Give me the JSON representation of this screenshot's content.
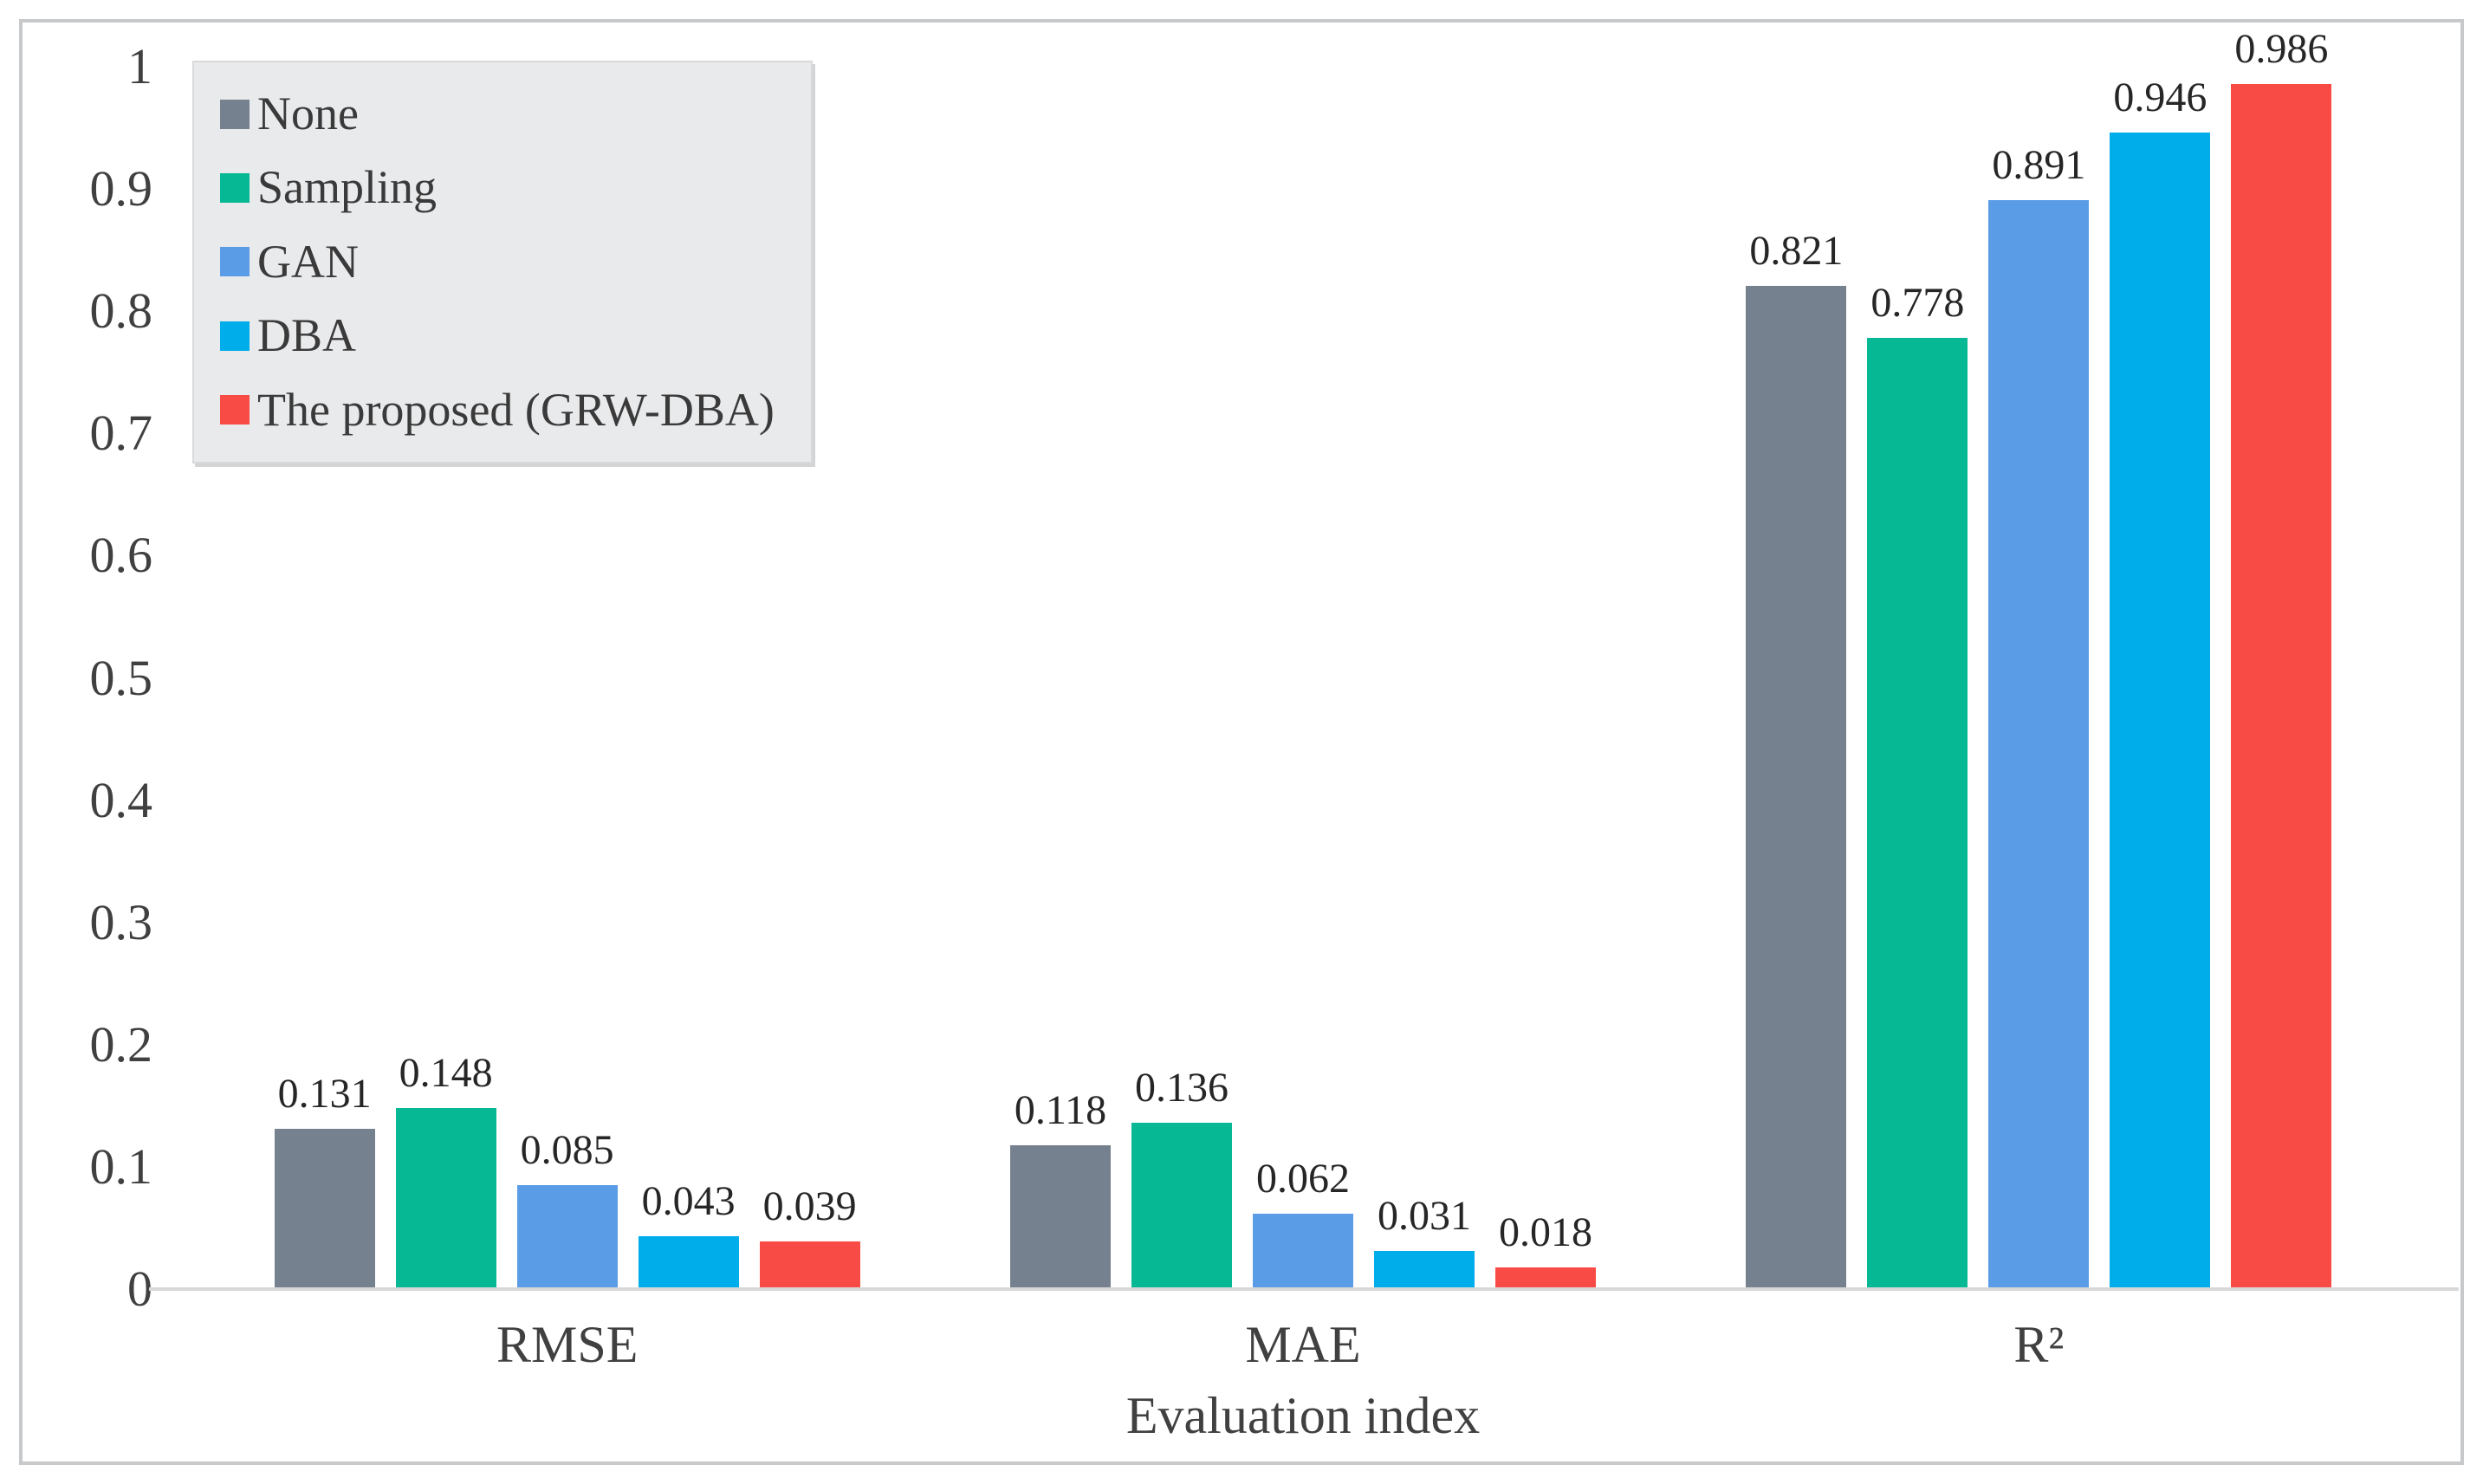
{
  "chart_data": {
    "type": "bar",
    "categories": [
      "RMSE",
      "MAE",
      "R²"
    ],
    "series": [
      {
        "name": "None",
        "color": "#76818F",
        "values": [
          0.131,
          0.118,
          0.821
        ]
      },
      {
        "name": "Sampling",
        "color": "#06B894",
        "values": [
          0.148,
          0.136,
          0.778
        ]
      },
      {
        "name": "GAN",
        "color": "#5B9CE6",
        "values": [
          0.085,
          0.062,
          0.891
        ]
      },
      {
        "name": "DBA",
        "color": "#00ADEB",
        "values": [
          0.043,
          0.031,
          0.946
        ]
      },
      {
        "name": "The proposed (GRW-DBA)",
        "color": "#F94B45",
        "values": [
          0.039,
          0.018,
          0.986
        ]
      }
    ],
    "title": "",
    "xlabel": "Evaluation index",
    "ylabel": "",
    "ylim": [
      0,
      1
    ],
    "y_tick_labels": [
      "0",
      "0.1",
      "0.2",
      "0.3",
      "0.4",
      "0.5",
      "0.6",
      "0.7",
      "0.8",
      "0.9",
      "1"
    ],
    "grid": false,
    "legend_position": "top-left",
    "value_label_decimals": 3,
    "colors": {
      "axis_text": "#404040",
      "value_label_text": "#262626",
      "axis_line": "#d8d8d8",
      "frame_border": "#c7c9cb",
      "legend_background": "#e9eaec"
    }
  }
}
